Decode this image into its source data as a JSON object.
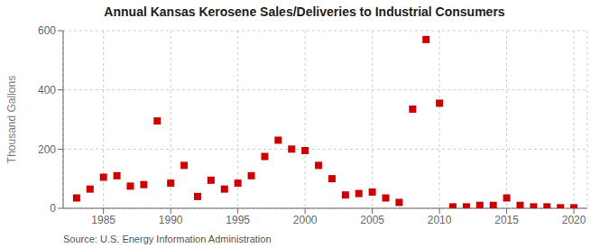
{
  "chart_data": {
    "type": "scatter",
    "title": "Annual Kansas Kerosene Sales/Deliveries to Industrial Consumers",
    "ylabel": "Thousand Gallons",
    "annotations": [
      "Source: U.S. Energy Information Administration"
    ],
    "x": [
      1983,
      1984,
      1985,
      1986,
      1987,
      1988,
      1989,
      1990,
      1991,
      1992,
      1993,
      1994,
      1995,
      1996,
      1997,
      1998,
      1999,
      2000,
      2001,
      2002,
      2003,
      2004,
      2005,
      2006,
      2007,
      2008,
      2009,
      2010,
      2011,
      2012,
      2013,
      2014,
      2015,
      2016,
      2017,
      2018,
      2019,
      2020
    ],
    "values": [
      35,
      65,
      105,
      110,
      75,
      80,
      295,
      85,
      145,
      40,
      95,
      65,
      85,
      110,
      175,
      230,
      200,
      195,
      145,
      100,
      45,
      50,
      55,
      35,
      20,
      335,
      570,
      355,
      5,
      5,
      10,
      10,
      35,
      10,
      5,
      5,
      2,
      2
    ],
    "color": "#cc0000",
    "marker": "square",
    "xlim": [
      1982,
      2021
    ],
    "ylim": [
      0,
      600
    ],
    "xticks": [
      1985,
      1990,
      1995,
      2000,
      2005,
      2010,
      2015,
      2020
    ],
    "yticks": [
      0,
      200,
      400,
      600
    ],
    "grid": true
  }
}
